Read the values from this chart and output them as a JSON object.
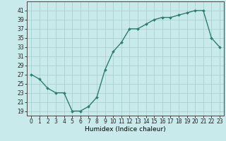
{
  "x": [
    0,
    1,
    2,
    3,
    4,
    5,
    6,
    7,
    8,
    9,
    10,
    11,
    12,
    13,
    14,
    15,
    16,
    17,
    18,
    19,
    20,
    21,
    22,
    23
  ],
  "y": [
    27,
    26,
    24,
    23,
    23,
    19,
    19,
    20,
    22,
    28,
    32,
    34,
    37,
    37,
    38,
    39,
    39.5,
    39.5,
    40,
    40.5,
    41,
    41,
    35,
    33
  ],
  "line_color": "#2e7d6e",
  "marker": "D",
  "marker_size": 2.0,
  "bg_color": "#c8eaea",
  "grid_color": "#aad0d0",
  "xlabel": "Humidex (Indice chaleur)",
  "xlim": [
    -0.5,
    23.5
  ],
  "ylim": [
    18,
    43
  ],
  "yticks": [
    19,
    21,
    23,
    25,
    27,
    29,
    31,
    33,
    35,
    37,
    39,
    41
  ],
  "xticks": [
    0,
    1,
    2,
    3,
    4,
    5,
    6,
    7,
    8,
    9,
    10,
    11,
    12,
    13,
    14,
    15,
    16,
    17,
    18,
    19,
    20,
    21,
    22,
    23
  ],
  "tick_labelsize": 5.5,
  "xlabel_fontsize": 6.5,
  "line_width": 1.0
}
